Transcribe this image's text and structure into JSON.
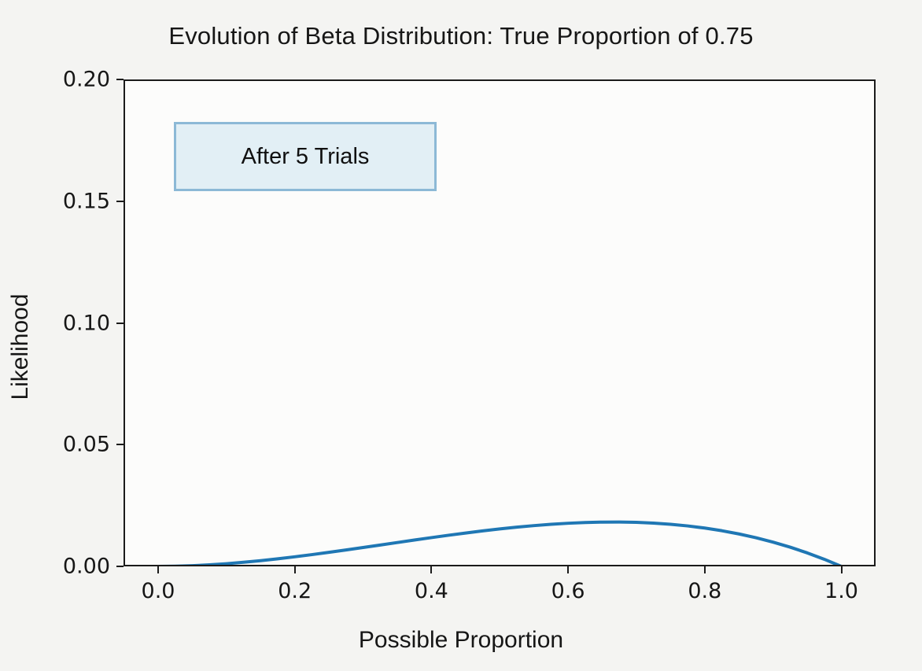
{
  "figure": {
    "title": "Evolution of Beta Distribution: True Proportion of 0.75",
    "xlabel": "Possible Proportion",
    "ylabel": "Likelihood",
    "annotation": "After 5 Trials",
    "colors": {
      "curve": "#1f77b4",
      "annotation_fill": "#e2eff5",
      "annotation_border": "#8cb9d6",
      "spine": "#1b1b1b",
      "figure_background": "#f4f4f2",
      "axes_background": "#fcfcfb"
    }
  },
  "chart_data": {
    "type": "line",
    "title": "Evolution of Beta Distribution: True Proportion of 0.75",
    "xlabel": "Possible Proportion",
    "ylabel": "Likelihood",
    "xlim": [
      -0.05,
      1.05
    ],
    "ylim": [
      0.0,
      0.2
    ],
    "x_ticks": [
      0.0,
      0.2,
      0.4,
      0.6,
      0.8,
      1.0
    ],
    "x_tick_labels": [
      "0.0",
      "0.2",
      "0.4",
      "0.6",
      "0.8",
      "1.0"
    ],
    "y_ticks": [
      0.0,
      0.05,
      0.1,
      0.15,
      0.2
    ],
    "y_tick_labels": [
      "0.00",
      "0.05",
      "0.10",
      "0.15",
      "0.20"
    ],
    "grid": false,
    "legend": false,
    "annotations": [
      {
        "text": "After 5 Trials",
        "x_range": [
          0.02,
          0.41
        ],
        "y_range": [
          0.154,
          0.183
        ]
      }
    ],
    "series": [
      {
        "name": "likelihood-curve",
        "color": "#1f77b4",
        "linewidth": 4,
        "peak": {
          "x": 0.66,
          "y": 0.0182
        },
        "x": [
          0.0,
          0.025,
          0.05,
          0.075,
          0.1,
          0.125,
          0.15,
          0.175,
          0.2,
          0.225,
          0.25,
          0.275,
          0.3,
          0.325,
          0.35,
          0.375,
          0.4,
          0.425,
          0.45,
          0.475,
          0.5,
          0.525,
          0.55,
          0.575,
          0.6,
          0.625,
          0.65,
          0.675,
          0.7,
          0.725,
          0.75,
          0.775,
          0.8,
          0.825,
          0.85,
          0.875,
          0.9,
          0.925,
          0.95,
          0.975,
          1.0
        ],
        "y": [
          0.0,
          7e-05,
          0.00029,
          0.00064,
          0.00111,
          0.00168,
          0.00235,
          0.00311,
          0.00394,
          0.00483,
          0.00577,
          0.00674,
          0.00775,
          0.00877,
          0.00979,
          0.01081,
          0.01181,
          0.01278,
          0.0137,
          0.01457,
          0.01538,
          0.0161,
          0.01674,
          0.01728,
          0.01771,
          0.01802,
          0.01819,
          0.01821,
          0.01808,
          0.01778,
          0.0173,
          0.01662,
          0.01574,
          0.01465,
          0.01333,
          0.01177,
          0.00996,
          0.00789,
          0.00555,
          0.00292,
          0.0
        ]
      }
    ]
  }
}
